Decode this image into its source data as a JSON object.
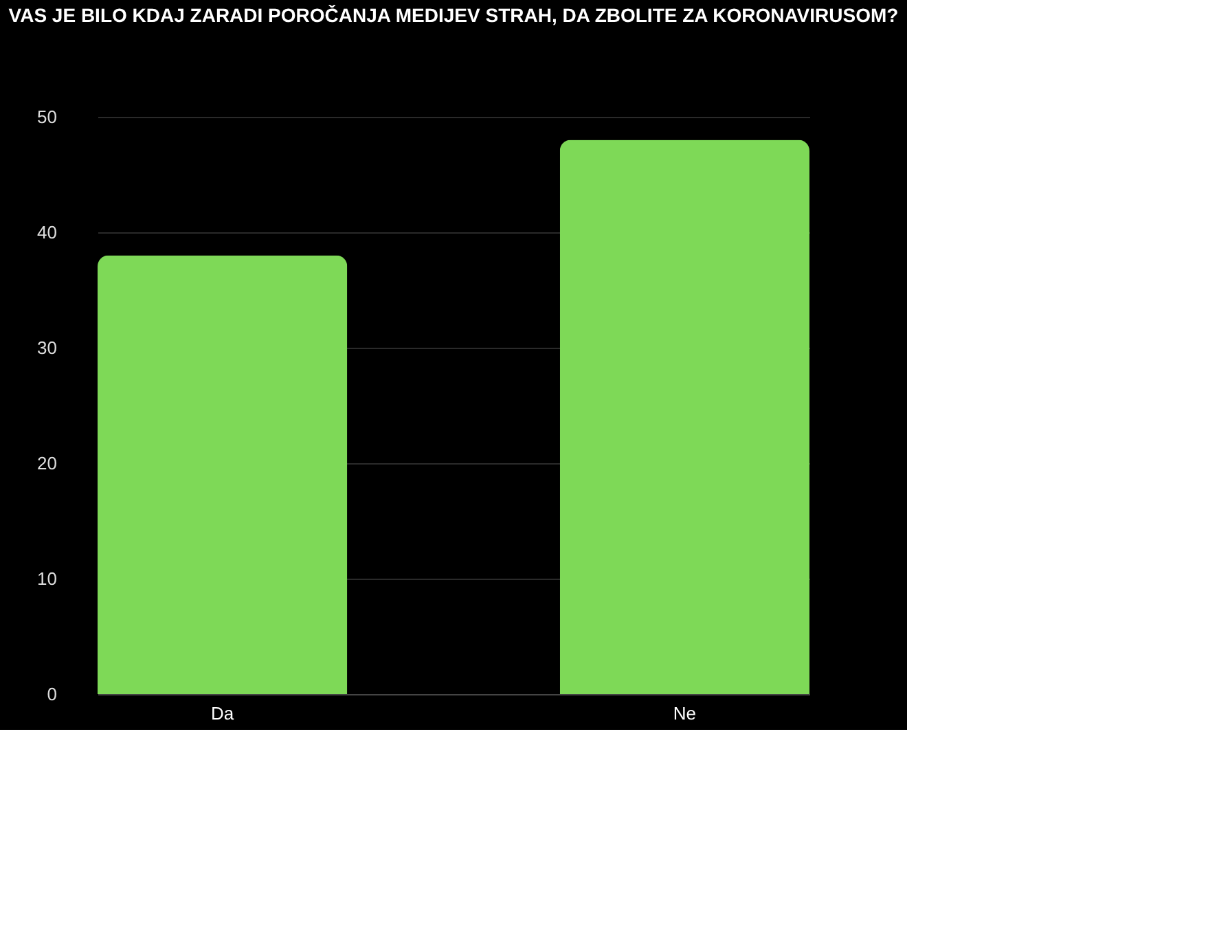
{
  "chart_data": {
    "type": "bar",
    "title": "VAS JE BILO KDAJ ZARADI POROČANJA MEDIJEV STRAH, DA ZBOLITE ZA KORONAVIRUSOM?",
    "categories": [
      "Da",
      "Ne"
    ],
    "values": [
      38,
      48
    ],
    "color": "#7ed957",
    "ylim": [
      0,
      50
    ],
    "yticks": [
      0,
      10,
      20,
      30,
      40,
      50
    ],
    "grid": "y"
  }
}
